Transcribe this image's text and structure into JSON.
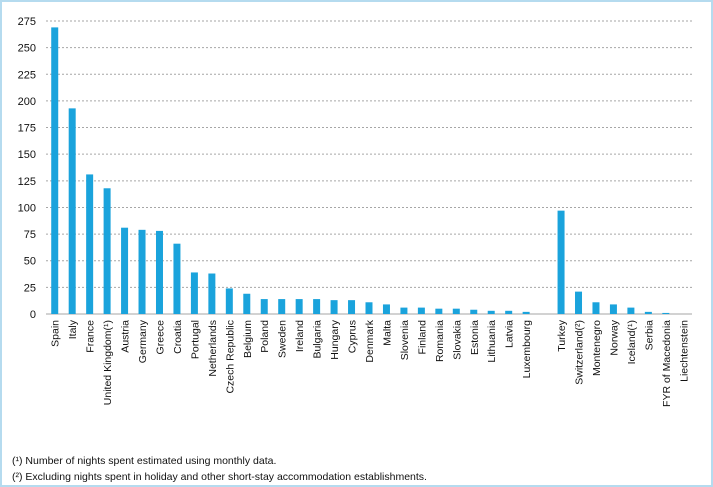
{
  "chart_data": {
    "type": "bar",
    "categories": [
      "Spain",
      "Italy",
      "France",
      "United Kingdom(¹)",
      "Austria",
      "Germany",
      "Greece",
      "Croatia",
      "Portugal",
      "Netherlands",
      "Czech Republic",
      "Belgium",
      "Poland",
      "Sweden",
      "Ireland",
      "Bulgaria",
      "Hungary",
      "Cyprus",
      "Denmark",
      "Malta",
      "Slovenia",
      "Finland",
      "Romania",
      "Slovakia",
      "Estonia",
      "Lithuania",
      "Latvia",
      "Luxembourg",
      "",
      "Turkey",
      "Switzerland(²)",
      "Montenegro",
      "Norway",
      "Iceland(¹)",
      "Serbia",
      "FYR of Macedonia",
      "Liechtenstein"
    ],
    "values": [
      269,
      193,
      131,
      118,
      81,
      79,
      78,
      66,
      39,
      38,
      24,
      19,
      14,
      14,
      14,
      14,
      13,
      13,
      11,
      9,
      6,
      6,
      5,
      5,
      4,
      3,
      3,
      2,
      null,
      97,
      21,
      11,
      9,
      6,
      2,
      1,
      0
    ],
    "yticks": [
      "0",
      "25",
      "50",
      "75",
      "100",
      "125",
      "150",
      "175",
      "200",
      "225",
      "250",
      "275"
    ],
    "ylim": [
      0,
      275
    ],
    "grid": true,
    "bar_color": "#1aa3dc",
    "grid_color": "#a6a6a6",
    "title": "",
    "xlabel": "",
    "ylabel": ""
  },
  "footnotes": [
    "(¹) Number of nights spent estimated using monthly data.",
    "(²) Excluding nights spent in holiday and other short-stay accommodation establishments."
  ]
}
